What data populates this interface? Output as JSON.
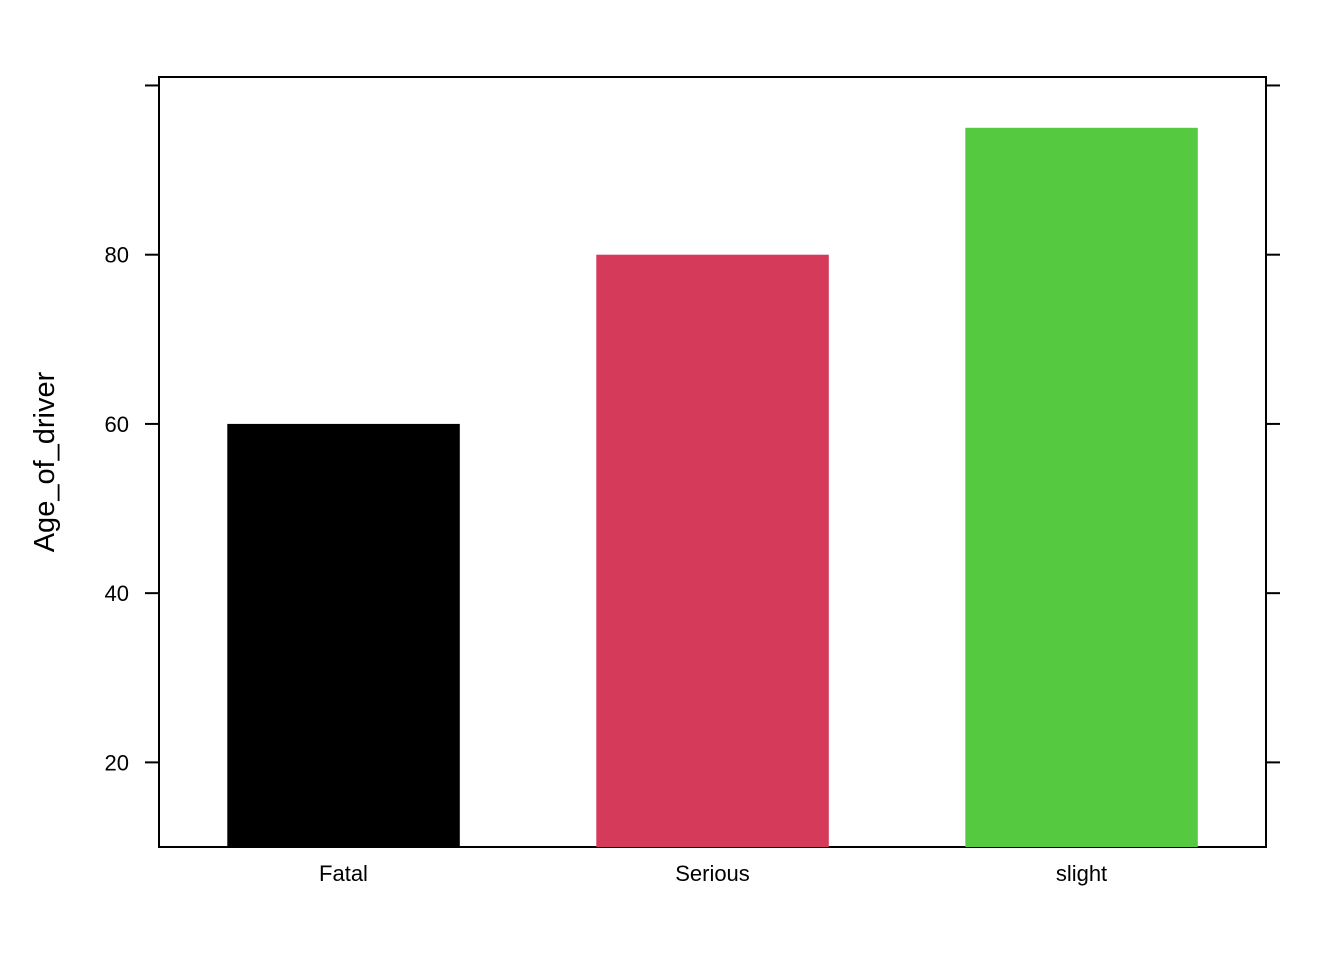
{
  "chart_data": {
    "type": "bar",
    "title": "",
    "xlabel": "",
    "ylabel": "Age_of_driver",
    "categories": [
      "Fatal",
      "Serious",
      "slight"
    ],
    "values": [
      60,
      80,
      95
    ],
    "colors": [
      "#000000",
      "#d63a5a",
      "#55ca41"
    ],
    "ylim": [
      10,
      101
    ],
    "yticks": [
      20,
      40,
      60,
      80
    ],
    "grid": false,
    "legend": "none"
  }
}
